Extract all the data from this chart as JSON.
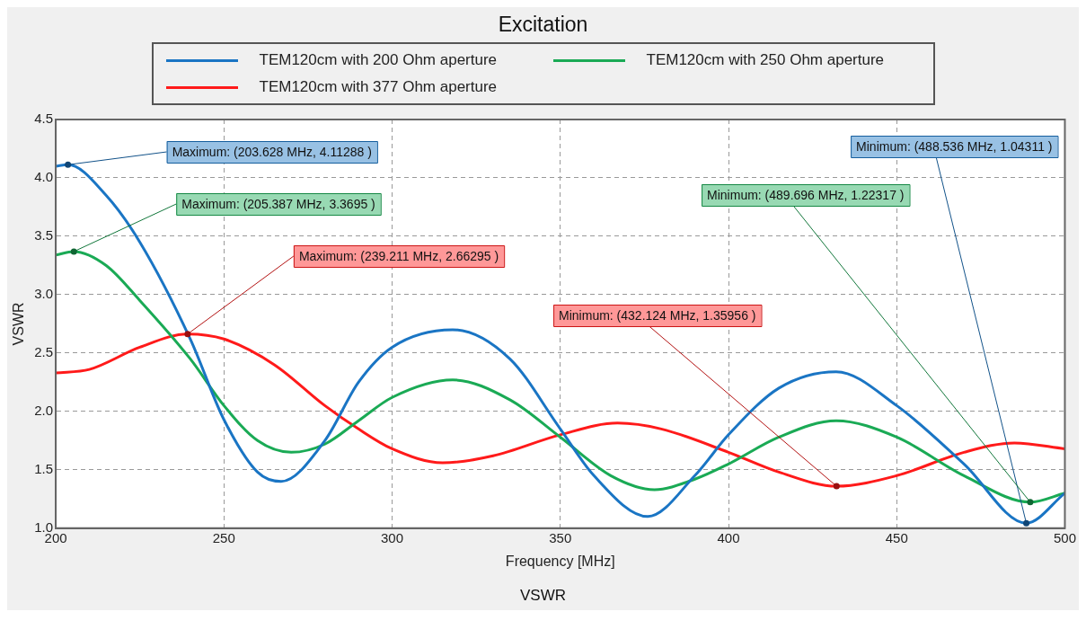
{
  "chart_data": {
    "type": "line",
    "title": "Excitation",
    "xlabel": "Frequency [MHz]",
    "ylabel": "VSWR",
    "legend": "top",
    "grid": true,
    "xlim": [
      200,
      500
    ],
    "xticks": [
      200,
      250,
      300,
      350,
      400,
      450,
      500
    ],
    "ylim": [
      1,
      4.5
    ],
    "yticks": [
      {
        "value": 1,
        "label": "1.0"
      },
      {
        "value": 1.5,
        "label": "1.5"
      },
      {
        "value": 2,
        "label": "2.0"
      },
      {
        "value": 2.5,
        "label": "2.5"
      },
      {
        "value": 3,
        "label": "3.0"
      },
      {
        "value": 3.5,
        "label": "3.5"
      },
      {
        "value": 4,
        "label": "4.0"
      },
      {
        "value": 4.5,
        "label": "4.5"
      }
    ],
    "series": [
      {
        "name": "TEM120cm with 200 Ohm aperture",
        "color": "#1a75c4",
        "x": [
          200,
          203.628,
          215,
          225,
          240,
          250,
          260,
          267,
          280,
          290,
          300,
          318,
          335,
          350,
          360,
          376,
          390,
          400,
          415,
          432,
          450,
          470,
          488.536,
          500
        ],
        "values": [
          4.1,
          4.11288,
          3.85,
          3.45,
          2.62,
          1.93,
          1.48,
          1.4,
          1.75,
          2.25,
          2.55,
          2.7,
          2.45,
          1.85,
          1.45,
          1.1,
          1.45,
          1.8,
          2.2,
          2.34,
          2.05,
          1.55,
          1.04311,
          1.3
        ]
      },
      {
        "name": "TEM120cm with 250 Ohm aperture",
        "color": "#1aaa55",
        "x": [
          200,
          205.387,
          215,
          225,
          240,
          250,
          260,
          270,
          280,
          290,
          300,
          318,
          335,
          350,
          365,
          378,
          390,
          400,
          415,
          432,
          450,
          470,
          489.696,
          500
        ],
        "values": [
          3.34,
          3.3695,
          3.25,
          2.95,
          2.45,
          2.05,
          1.75,
          1.65,
          1.72,
          1.92,
          2.12,
          2.27,
          2.1,
          1.78,
          1.45,
          1.33,
          1.42,
          1.55,
          1.78,
          1.92,
          1.78,
          1.45,
          1.22317,
          1.3
        ]
      },
      {
        "name": "TEM120cm with 377 Ohm aperture",
        "color": "#ff1a1a",
        "x": [
          200,
          210,
          225,
          239.211,
          250,
          265,
          280,
          290,
          300,
          315,
          330,
          350,
          367,
          380,
          400,
          415,
          432.124,
          450,
          470,
          485,
          500
        ],
        "values": [
          2.33,
          2.36,
          2.55,
          2.66295,
          2.62,
          2.4,
          2.05,
          1.85,
          1.68,
          1.56,
          1.62,
          1.8,
          1.9,
          1.85,
          1.65,
          1.48,
          1.35956,
          1.45,
          1.65,
          1.73,
          1.68
        ]
      }
    ],
    "annotations": [
      {
        "text": "Maximum: (203.628 MHz, 4.11288 )",
        "x": 203.628,
        "y": 4.11288
      },
      {
        "text": "Maximum: (205.387 MHz, 3.3695 )",
        "x": 205.387,
        "y": 3.3695
      },
      {
        "text": "Maximum: (239.211 MHz, 2.66295 )",
        "x": 239.211,
        "y": 2.66295
      },
      {
        "text": "Minimum: (488.536 MHz, 1.04311 )",
        "x": 488.536,
        "y": 1.04311
      },
      {
        "text": "Minimum: (489.696 MHz, 1.22317 )",
        "x": 489.696,
        "y": 1.22317
      },
      {
        "text": "Minimum: (432.124 MHz, 1.35956 )",
        "x": 432.124,
        "y": 1.35956
      },
      "VSWR"
    ]
  }
}
